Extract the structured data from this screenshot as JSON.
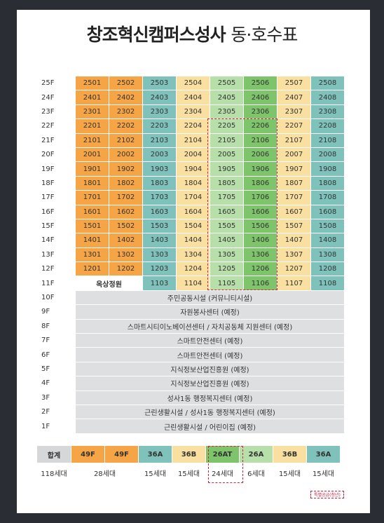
{
  "title": {
    "main": "창조혁신캠퍼스성사",
    "sub": "동·호수표"
  },
  "floors_units": [
    {
      "floor": "25F",
      "units": [
        "2501",
        "2502",
        "2503",
        "2504",
        "2505",
        "2506",
        "2507",
        "2508"
      ]
    },
    {
      "floor": "24F",
      "units": [
        "2401",
        "2402",
        "2403",
        "2404",
        "2405",
        "2406",
        "2407",
        "2408"
      ]
    },
    {
      "floor": "23F",
      "units": [
        "2301",
        "2302",
        "2303",
        "2304",
        "2305",
        "2306",
        "2307",
        "2308"
      ]
    },
    {
      "floor": "22F",
      "units": [
        "2201",
        "2202",
        "2203",
        "2204",
        "2205",
        "2206",
        "2207",
        "2208"
      ]
    },
    {
      "floor": "21F",
      "units": [
        "2101",
        "2102",
        "2103",
        "2104",
        "2105",
        "2106",
        "2107",
        "2108"
      ]
    },
    {
      "floor": "20F",
      "units": [
        "2001",
        "2002",
        "2003",
        "2004",
        "2005",
        "2006",
        "2007",
        "2008"
      ]
    },
    {
      "floor": "19F",
      "units": [
        "1901",
        "1902",
        "1903",
        "1904",
        "1905",
        "1906",
        "1907",
        "1908"
      ]
    },
    {
      "floor": "18F",
      "units": [
        "1801",
        "1802",
        "1803",
        "1804",
        "1805",
        "1806",
        "1807",
        "1808"
      ]
    },
    {
      "floor": "17F",
      "units": [
        "1701",
        "1702",
        "1703",
        "1704",
        "1705",
        "1706",
        "1707",
        "1708"
      ]
    },
    {
      "floor": "16F",
      "units": [
        "1601",
        "1602",
        "1603",
        "1604",
        "1605",
        "1606",
        "1607",
        "1608"
      ]
    },
    {
      "floor": "15F",
      "units": [
        "1501",
        "1502",
        "1503",
        "1504",
        "1505",
        "1506",
        "1507",
        "1508"
      ]
    },
    {
      "floor": "14F",
      "units": [
        "1401",
        "1402",
        "1403",
        "1404",
        "1405",
        "1406",
        "1407",
        "1408"
      ]
    },
    {
      "floor": "13F",
      "units": [
        "1301",
        "1302",
        "1303",
        "1304",
        "1305",
        "1306",
        "1307",
        "1308"
      ]
    },
    {
      "floor": "12F",
      "units": [
        "1201",
        "1202",
        "1203",
        "1204",
        "1205",
        "1206",
        "1207",
        "1208"
      ]
    }
  ],
  "floor11": {
    "floor": "11F",
    "rooftop": "옥상정원",
    "units": [
      "1103",
      "1104",
      "1105",
      "1106",
      "1107",
      "1108"
    ]
  },
  "facilities": [
    {
      "floor": "10F",
      "label": "주민공동시설 (커뮤니티시설)"
    },
    {
      "floor": "9F",
      "label": "자원봉사센터 (예정)"
    },
    {
      "floor": "8F",
      "label": "스마트시티이노베이션센터 / 자치공동체 지원센터 (예정)"
    },
    {
      "floor": "7F",
      "label": "스마트안전센터 (예정)"
    },
    {
      "floor": "6F",
      "label": "스마트안전센터 (예정)"
    },
    {
      "floor": "5F",
      "label": "지식정보산업진흥원 (예정)"
    },
    {
      "floor": "4F",
      "label": "지식정보산업진흥원 (예정)"
    },
    {
      "floor": "3F",
      "label": "성사1동 행정복지센터 (예정)"
    },
    {
      "floor": "2F",
      "label": "근린생활시설 / 성사1동 행정복지센터 (예정)"
    },
    {
      "floor": "1F",
      "label": "근린생활시설 / 어린이집 (예정)"
    }
  ],
  "summary": {
    "header": [
      "합계",
      "49F",
      "49F",
      "36A",
      "36B",
      "26AT",
      "26A",
      "36B",
      "36A"
    ],
    "values": [
      "118세대",
      "28세대",
      "15세대",
      "15세대",
      "24세대",
      "6세대",
      "15세대",
      "15세대"
    ]
  },
  "legend": "특별공급(청년)",
  "colors": {
    "orange": "#f5a546",
    "teal": "#7fc2bb",
    "yellow": "#f9dfa0",
    "light_green": "#b6dfa9",
    "green": "#7dc46b",
    "gray": "#dedfe1",
    "highlight": "#d3203f",
    "background": "#2a2d33"
  }
}
